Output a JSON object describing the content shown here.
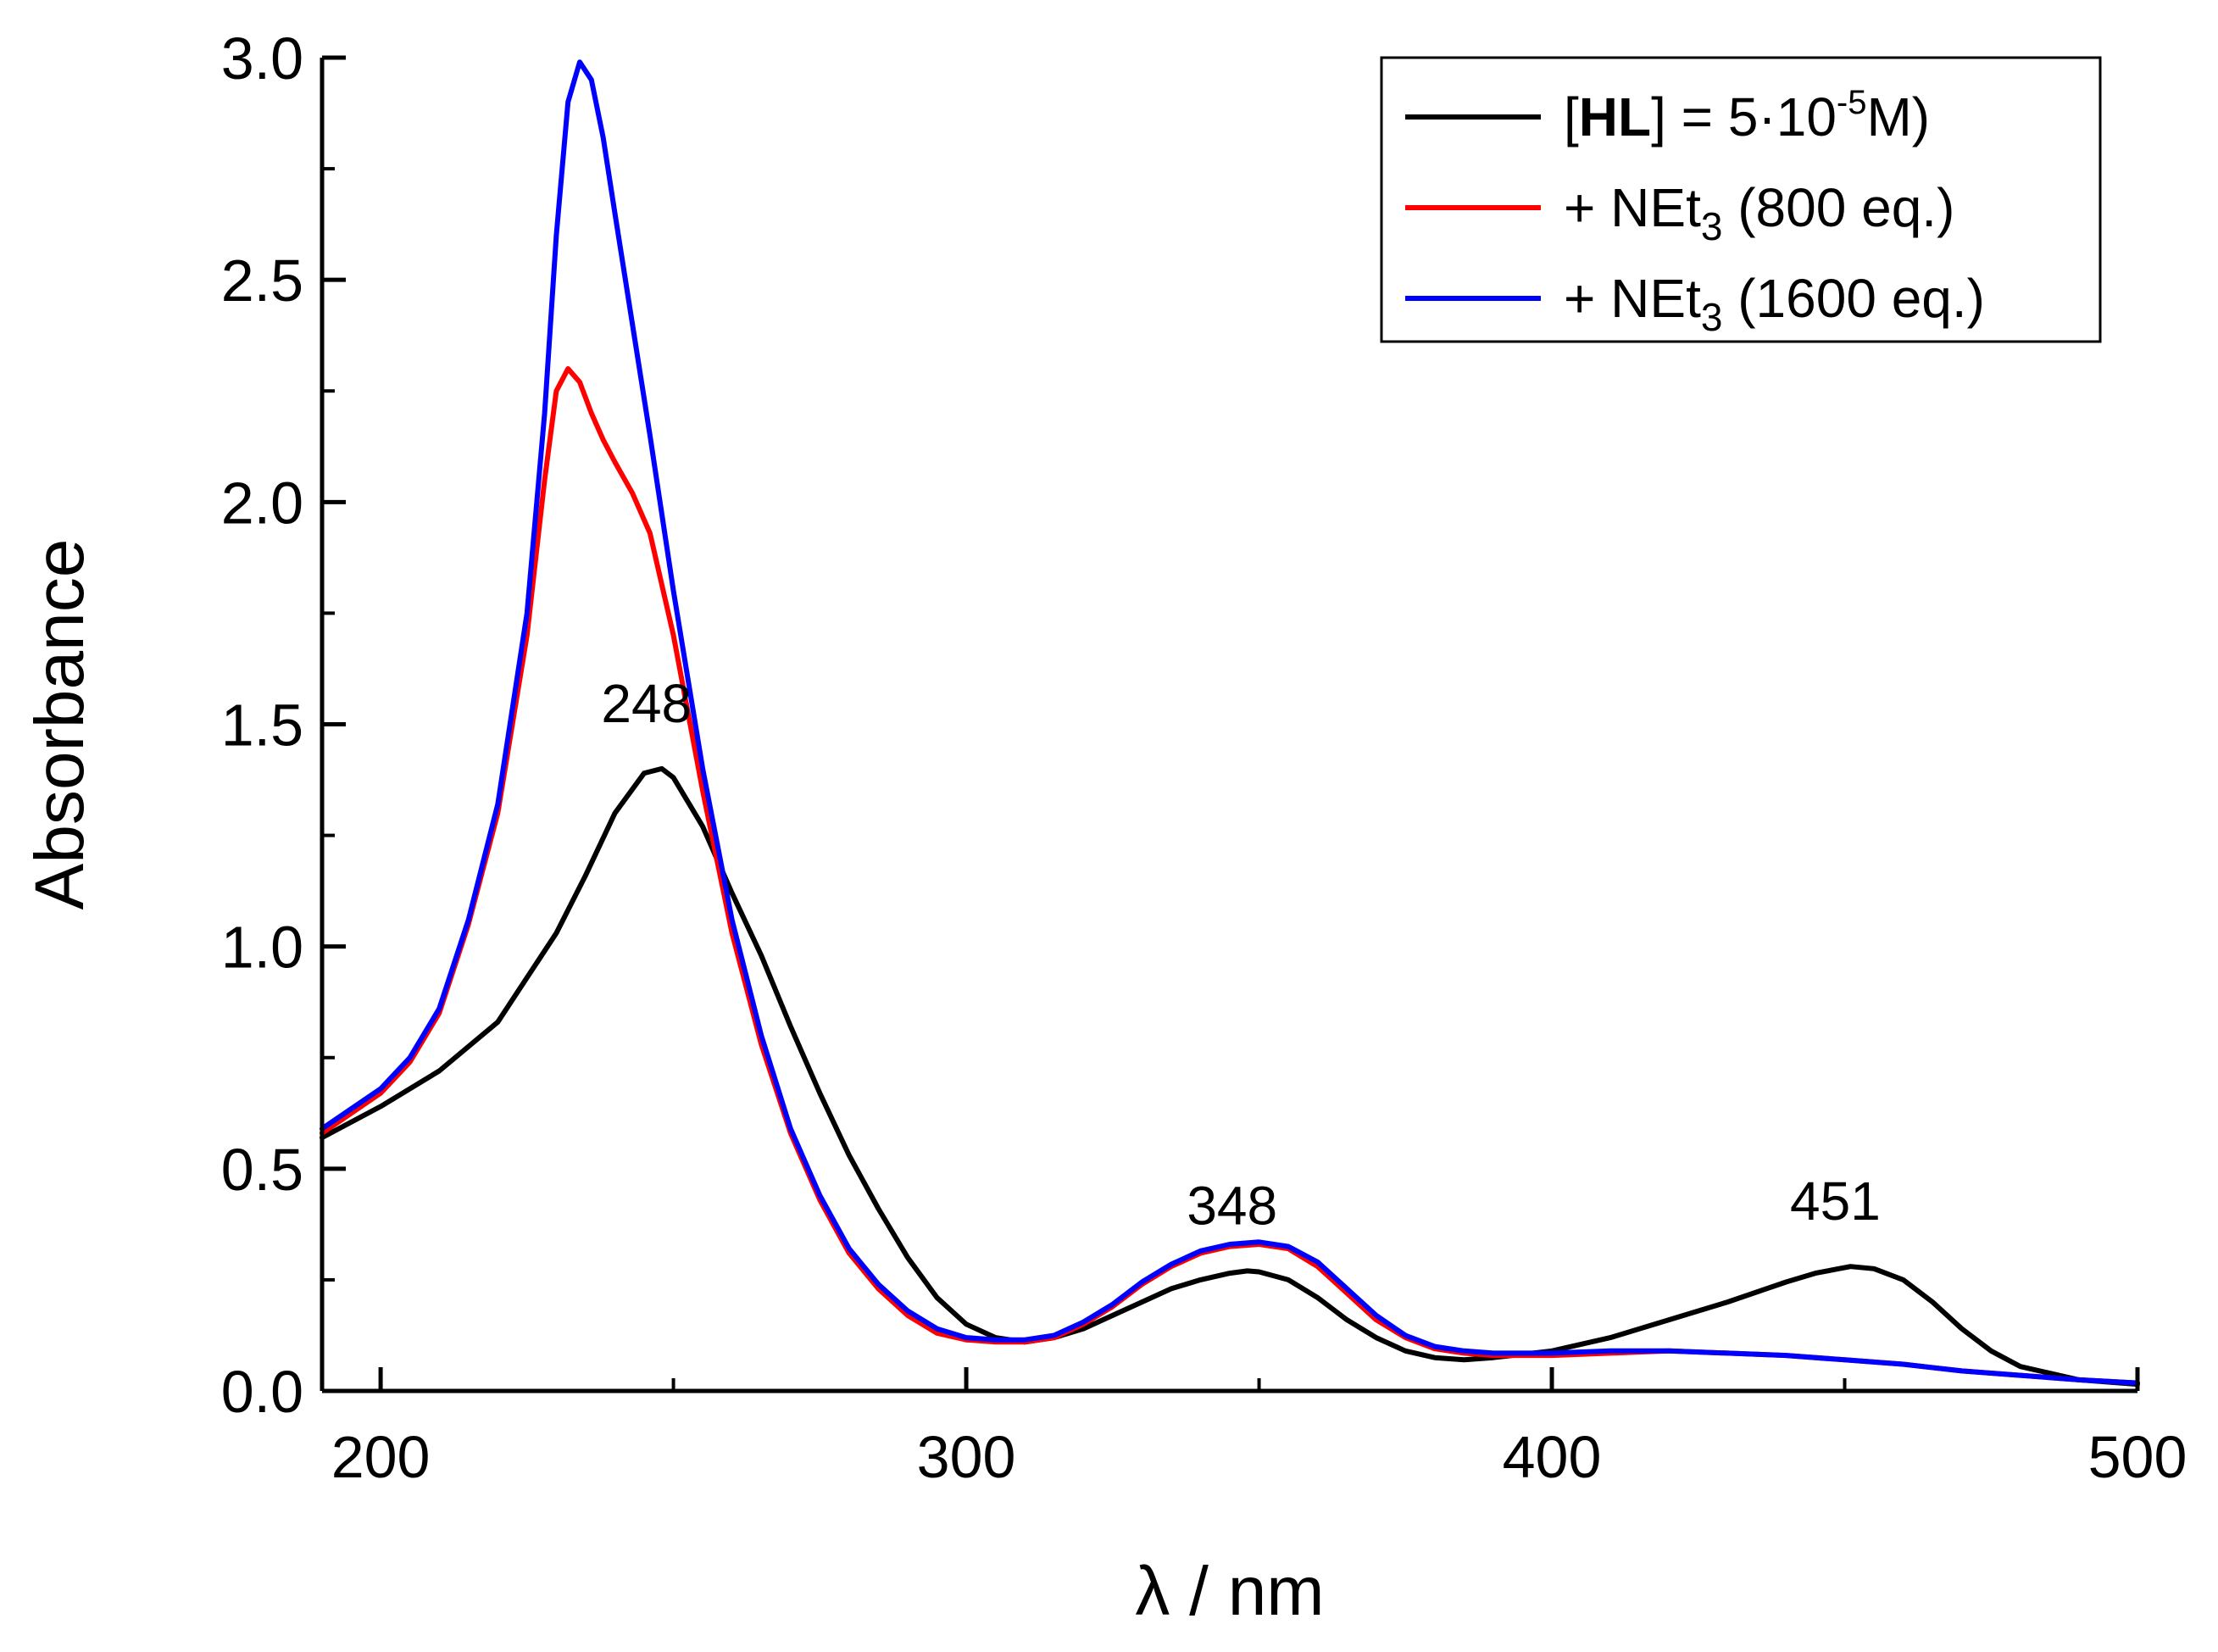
{
  "chart_data": {
    "type": "line",
    "xlabel": "λ / nm",
    "ylabel": "Absorbance",
    "xlim": [
      190,
      500
    ],
    "ylim": [
      0.0,
      3.0
    ],
    "xticks": [
      200,
      300,
      400,
      500
    ],
    "xtick_labels": [
      "200",
      "300",
      "400",
      "500"
    ],
    "yticks": [
      0.0,
      0.5,
      1.0,
      1.5,
      2.0,
      2.5,
      3.0
    ],
    "ytick_labels": [
      "0.0",
      "0.5",
      "1.0",
      "1.5",
      "2.0",
      "2.5",
      "3.0"
    ],
    "grid": false,
    "legend_position": "top-right",
    "annotations": [
      {
        "text": "248",
        "x": 248,
        "y": 1.4
      },
      {
        "text": "348",
        "x": 348,
        "y": 0.27
      },
      {
        "text": "451",
        "x": 451,
        "y": 0.28
      }
    ],
    "series": [
      {
        "name": "[HL] = 5·10-5M)",
        "legend": {
          "bold": "HL",
          "prefix": "[",
          "after_bold": "] = 5·10",
          "sup": "-5",
          "suffix": "M)"
        },
        "color": "#000000",
        "x": [
          190,
          200,
          210,
          220,
          225,
          230,
          235,
          240,
          245,
          248,
          250,
          255,
          260,
          265,
          270,
          275,
          280,
          285,
          290,
          295,
          300,
          305,
          310,
          315,
          320,
          325,
          330,
          335,
          340,
          345,
          348,
          350,
          355,
          360,
          365,
          370,
          375,
          380,
          385,
          390,
          400,
          410,
          420,
          430,
          440,
          445,
          451,
          455,
          460,
          465,
          470,
          475,
          480,
          490,
          500
        ],
        "y": [
          0.57,
          0.64,
          0.72,
          0.83,
          0.93,
          1.03,
          1.16,
          1.3,
          1.39,
          1.4,
          1.38,
          1.27,
          1.12,
          0.98,
          0.82,
          0.67,
          0.53,
          0.41,
          0.3,
          0.21,
          0.15,
          0.12,
          0.11,
          0.12,
          0.14,
          0.17,
          0.2,
          0.23,
          0.25,
          0.265,
          0.27,
          0.268,
          0.25,
          0.21,
          0.16,
          0.12,
          0.09,
          0.075,
          0.07,
          0.075,
          0.09,
          0.12,
          0.16,
          0.2,
          0.245,
          0.265,
          0.28,
          0.275,
          0.25,
          0.2,
          0.14,
          0.09,
          0.055,
          0.025,
          0.015
        ]
      },
      {
        "name": "+ NEt3 (800 eq.)",
        "legend": {
          "prefix": "+ NEt",
          "sub": "3",
          "suffix": " (800 eq.)"
        },
        "color": "#ff0000",
        "x": [
          190,
          200,
          205,
          210,
          215,
          220,
          225,
          228,
          230,
          232,
          234,
          236,
          238,
          240,
          243,
          246,
          250,
          255,
          260,
          265,
          270,
          275,
          280,
          285,
          290,
          295,
          300,
          305,
          310,
          315,
          320,
          325,
          330,
          335,
          340,
          345,
          350,
          355,
          360,
          365,
          370,
          375,
          380,
          385,
          390,
          400,
          410,
          420,
          430,
          440,
          450,
          460,
          470,
          480,
          490,
          500
        ],
        "y": [
          0.58,
          0.67,
          0.74,
          0.85,
          1.05,
          1.3,
          1.7,
          2.05,
          2.25,
          2.3,
          2.27,
          2.2,
          2.14,
          2.09,
          2.02,
          1.93,
          1.7,
          1.35,
          1.03,
          0.78,
          0.58,
          0.43,
          0.31,
          0.23,
          0.17,
          0.13,
          0.115,
          0.11,
          0.11,
          0.12,
          0.15,
          0.19,
          0.24,
          0.28,
          0.31,
          0.325,
          0.33,
          0.32,
          0.28,
          0.22,
          0.16,
          0.12,
          0.095,
          0.085,
          0.08,
          0.08,
          0.085,
          0.09,
          0.085,
          0.08,
          0.07,
          0.06,
          0.045,
          0.035,
          0.025,
          0.018
        ]
      },
      {
        "name": "+ NEt3 (1600 eq.)",
        "legend": {
          "prefix": "+ NEt",
          "sub": "3",
          "suffix": " (1600 eq.)"
        },
        "color": "#0000ff",
        "x": [
          190,
          200,
          205,
          210,
          215,
          220,
          225,
          228,
          230,
          232,
          234,
          236,
          238,
          240,
          243,
          246,
          250,
          255,
          260,
          265,
          270,
          275,
          280,
          285,
          290,
          295,
          300,
          305,
          310,
          315,
          320,
          325,
          330,
          335,
          340,
          345,
          350,
          355,
          360,
          365,
          370,
          375,
          380,
          385,
          390,
          400,
          410,
          420,
          430,
          440,
          450,
          460,
          470,
          480,
          490,
          500
        ],
        "y": [
          0.59,
          0.68,
          0.75,
          0.86,
          1.06,
          1.32,
          1.75,
          2.2,
          2.6,
          2.9,
          2.99,
          2.95,
          2.82,
          2.65,
          2.4,
          2.15,
          1.8,
          1.4,
          1.06,
          0.8,
          0.59,
          0.44,
          0.32,
          0.24,
          0.18,
          0.14,
          0.12,
          0.115,
          0.115,
          0.125,
          0.155,
          0.195,
          0.245,
          0.285,
          0.315,
          0.33,
          0.335,
          0.325,
          0.29,
          0.23,
          0.17,
          0.125,
          0.1,
          0.09,
          0.085,
          0.085,
          0.09,
          0.09,
          0.085,
          0.08,
          0.07,
          0.06,
          0.045,
          0.035,
          0.025,
          0.018
        ]
      }
    ]
  }
}
